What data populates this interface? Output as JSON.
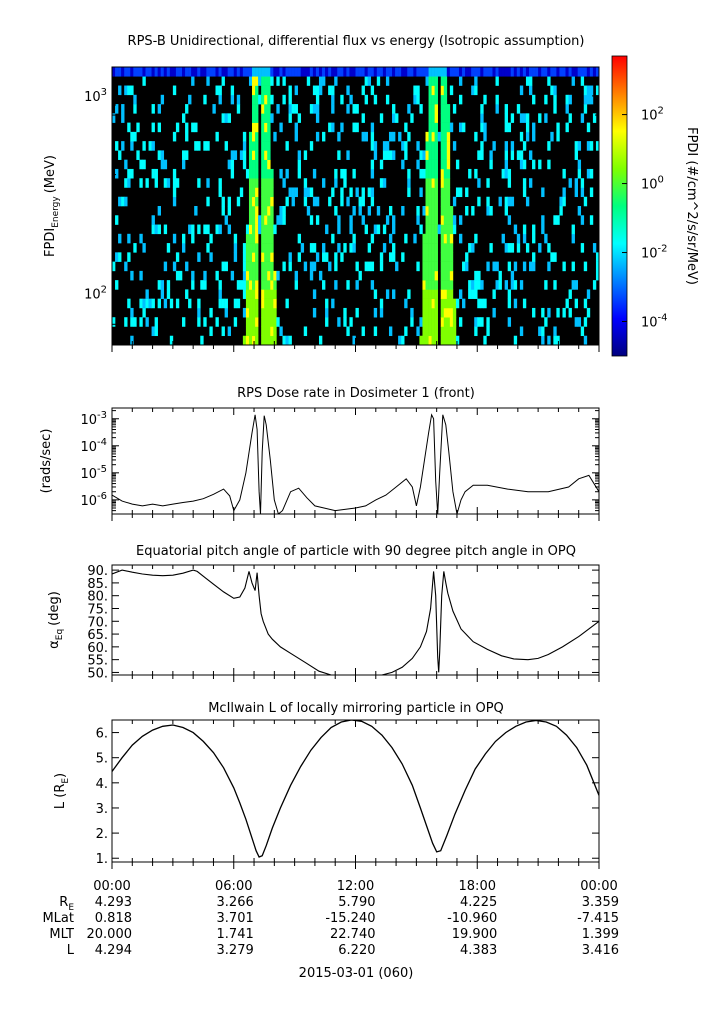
{
  "chart_data": [
    {
      "type": "heatmap",
      "title": "RPS-B  Unidirectional, differential flux vs energy (Isotropic assumption)",
      "ylabel": "FPDI",
      "ylabel_sub": "Energy",
      "ylabel_unit": "(MeV)",
      "yscale": "log",
      "ylim": [
        55,
        1400
      ],
      "yticks": [
        {
          "v": 100,
          "base": "10",
          "exp": "2"
        },
        {
          "v": 1000,
          "base": "10",
          "exp": "3"
        }
      ],
      "xlim_hours": [
        0,
        24
      ],
      "enhancement_centers_hours": [
        7.15,
        7.5,
        15.85,
        16.3
      ],
      "colorbar": {
        "label": "FPDI (#/cm^2/s/sr/MeV)",
        "scale": "log",
        "range": [
          1e-05,
          5000
        ],
        "ticks": [
          {
            "v": 0.0001,
            "base": "10",
            "exp": "-4"
          },
          {
            "v": 0.01,
            "base": "10",
            "exp": "-2"
          },
          {
            "v": 1,
            "base": "10",
            "exp": "0"
          },
          {
            "v": 100,
            "base": "10",
            "exp": "2"
          }
        ],
        "colors": [
          "#00007f",
          "#0000ff",
          "#0080ff",
          "#00ffff",
          "#00ff80",
          "#80ff00",
          "#ffff00",
          "#ff8000",
          "#ff0000"
        ]
      }
    },
    {
      "type": "line",
      "title": "RPS  Dose rate in Dosimeter 1 (front)",
      "ylabel": "(rads/sec)",
      "yscale": "log",
      "ylim": [
        3e-07,
        0.0025
      ],
      "yticks": [
        {
          "v": 1e-06,
          "base": "10",
          "exp": "-6"
        },
        {
          "v": 1e-05,
          "base": "10",
          "exp": "-5"
        },
        {
          "v": 0.0001,
          "base": "10",
          "exp": "-4"
        },
        {
          "v": 0.001,
          "base": "10",
          "exp": "-3"
        }
      ],
      "series": [
        {
          "x": [
            0,
            0.5,
            1,
            1.5,
            2,
            2.5,
            3,
            3.5,
            4,
            4.5,
            5,
            5.5,
            5.8,
            6.0,
            6.3,
            6.6,
            6.9,
            7.05,
            7.15,
            7.25,
            7.32,
            7.4,
            7.5,
            7.6,
            7.8,
            8.0,
            8.2,
            8.4,
            8.8,
            9.2,
            9.6,
            10,
            11,
            12,
            12.5,
            13,
            13.5,
            14,
            14.5,
            14.8,
            15.0,
            15.2,
            15.4,
            15.6,
            15.75,
            15.85,
            15.95,
            16.05,
            16.15,
            16.3,
            16.45,
            16.6,
            16.8,
            17.0,
            17.2,
            17.4,
            17.8,
            18.5,
            19.5,
            20.5,
            21.5,
            22.5,
            23.0,
            23.5,
            24
          ],
          "y": [
            1.5e-06,
            9e-07,
            7e-07,
            6e-07,
            7e-07,
            6e-07,
            7e-07,
            8e-07,
            9e-07,
            1.1e-06,
            1.6e-06,
            2.5e-06,
            1.4e-06,
            4e-07,
            1e-06,
            1e-05,
            0.0003,
            0.0014,
            0.0004,
            2e-06,
            3e-07,
            6e-05,
            0.0013,
            0.0006,
            3e-05,
            1e-06,
            3e-07,
            4e-07,
            2e-06,
            2.7e-06,
            1.2e-06,
            6e-07,
            4e-07,
            5e-07,
            6e-07,
            1e-06,
            1.5e-06,
            3e-06,
            6e-06,
            3e-06,
            6e-07,
            3e-06,
            3e-05,
            0.0003,
            0.0014,
            0.001,
            5e-06,
            3e-07,
            1e-05,
            0.0014,
            0.0006,
            6e-05,
            2e-06,
            3e-07,
            1e-06,
            2e-06,
            3.5e-06,
            3.5e-06,
            2.5e-06,
            2e-06,
            2e-06,
            3e-06,
            6e-06,
            8e-06,
            2e-06
          ]
        }
      ]
    },
    {
      "type": "line",
      "title": "Equatorial pitch angle of particle with 90 degree pitch angle in OPQ",
      "ylabel": "α",
      "ylabel_sub": "Eq",
      "ylabel_unit": "(deg)",
      "ylim": [
        49,
        92
      ],
      "yticks": [
        50,
        55,
        60,
        65,
        70,
        75,
        80,
        85,
        90
      ],
      "series": [
        {
          "x": [
            0,
            0.5,
            1,
            1.5,
            2,
            2.5,
            3,
            3.5,
            4,
            4.2,
            4.6,
            5,
            5.5,
            6,
            6.3,
            6.55,
            6.75,
            6.9,
            7.05,
            7.15,
            7.25,
            7.35,
            7.45,
            7.55,
            7.7,
            7.9,
            8.3,
            8.8,
            9.5,
            10.2,
            10.8,
            11.3,
            12,
            12.8,
            13.3,
            13.8,
            14.3,
            14.8,
            15.2,
            15.5,
            15.7,
            15.85,
            15.95,
            16.05,
            16.1,
            16.15,
            16.25,
            16.35,
            16.45,
            16.55,
            16.8,
            17.2,
            17.8,
            18.5,
            19.2,
            19.8,
            20.5,
            21,
            21.5,
            22.2,
            23,
            24
          ],
          "y": [
            88.5,
            90,
            89.2,
            88.5,
            88,
            87.8,
            88,
            88.8,
            90,
            89.5,
            87,
            84.5,
            81.5,
            79,
            79.5,
            83,
            89.5,
            85,
            82,
            89,
            80,
            73,
            70,
            68,
            65,
            63,
            60,
            57.5,
            54,
            50.5,
            49,
            49,
            49,
            49,
            49,
            50,
            52,
            55.5,
            60,
            66,
            75,
            89.5,
            80,
            56,
            50,
            58,
            80,
            89.5,
            85,
            81,
            74,
            67,
            62,
            59,
            56.5,
            55.3,
            55,
            55.5,
            57,
            60,
            64,
            70
          ]
        }
      ]
    },
    {
      "type": "line",
      "title": "McIlwain L of locally mirroring particle in OPQ",
      "ylabel": "L (R",
      "ylabel_sub": "E",
      "ylabel_unit": ")",
      "ylim": [
        0.85,
        6.5
      ],
      "yticks": [
        1,
        2,
        3,
        4,
        5,
        6
      ],
      "yticklabels": [
        "1.",
        "2.",
        "3.",
        "4.",
        "5.",
        "6."
      ],
      "series": [
        {
          "x": [
            0,
            0.5,
            1,
            1.5,
            2,
            2.5,
            3,
            3.5,
            4,
            4.5,
            5,
            5.5,
            6,
            6.3,
            6.6,
            6.9,
            7.1,
            7.25,
            7.4,
            7.6,
            7.9,
            8.3,
            8.8,
            9.3,
            9.8,
            10.3,
            10.8,
            11.3,
            11.8,
            12.3,
            12.8,
            13.3,
            13.8,
            14.3,
            14.8,
            15.2,
            15.5,
            15.8,
            16.0,
            16.2,
            16.5,
            16.9,
            17.4,
            17.9,
            18.4,
            18.9,
            19.4,
            19.9,
            20.4,
            20.9,
            21.4,
            21.9,
            22.4,
            22.9,
            23.4,
            24
          ],
          "y": [
            4.45,
            5.0,
            5.5,
            5.85,
            6.1,
            6.25,
            6.3,
            6.2,
            6.0,
            5.65,
            5.2,
            4.6,
            3.8,
            3.2,
            2.55,
            1.8,
            1.3,
            1.05,
            1.1,
            1.5,
            2.2,
            3.0,
            3.9,
            4.65,
            5.3,
            5.8,
            6.2,
            6.42,
            6.5,
            6.45,
            6.25,
            5.9,
            5.4,
            4.75,
            3.9,
            3.0,
            2.3,
            1.6,
            1.25,
            1.3,
            1.9,
            2.75,
            3.7,
            4.55,
            5.15,
            5.65,
            6.0,
            6.25,
            6.42,
            6.48,
            6.42,
            6.25,
            5.9,
            5.4,
            4.7,
            3.5
          ]
        }
      ]
    }
  ],
  "xaxis": {
    "ticks": [
      "00:00",
      "06:00",
      "12:00",
      "18:00",
      "00:00"
    ],
    "rows": [
      {
        "label": "R",
        "sub": "E",
        "values": [
          "4.293",
          "3.266",
          "5.790",
          "4.225",
          "3.359"
        ]
      },
      {
        "label": "MLat",
        "values": [
          "0.818",
          "3.701",
          "-15.240",
          "-10.960",
          "-7.415"
        ]
      },
      {
        "label": "MLT",
        "values": [
          "20.000",
          "1.741",
          "22.740",
          "19.900",
          "1.399"
        ]
      },
      {
        "label": "L",
        "values": [
          "4.294",
          "3.279",
          "6.220",
          "4.383",
          "3.416"
        ]
      }
    ],
    "date_label": "2015-03-01 (060)"
  }
}
